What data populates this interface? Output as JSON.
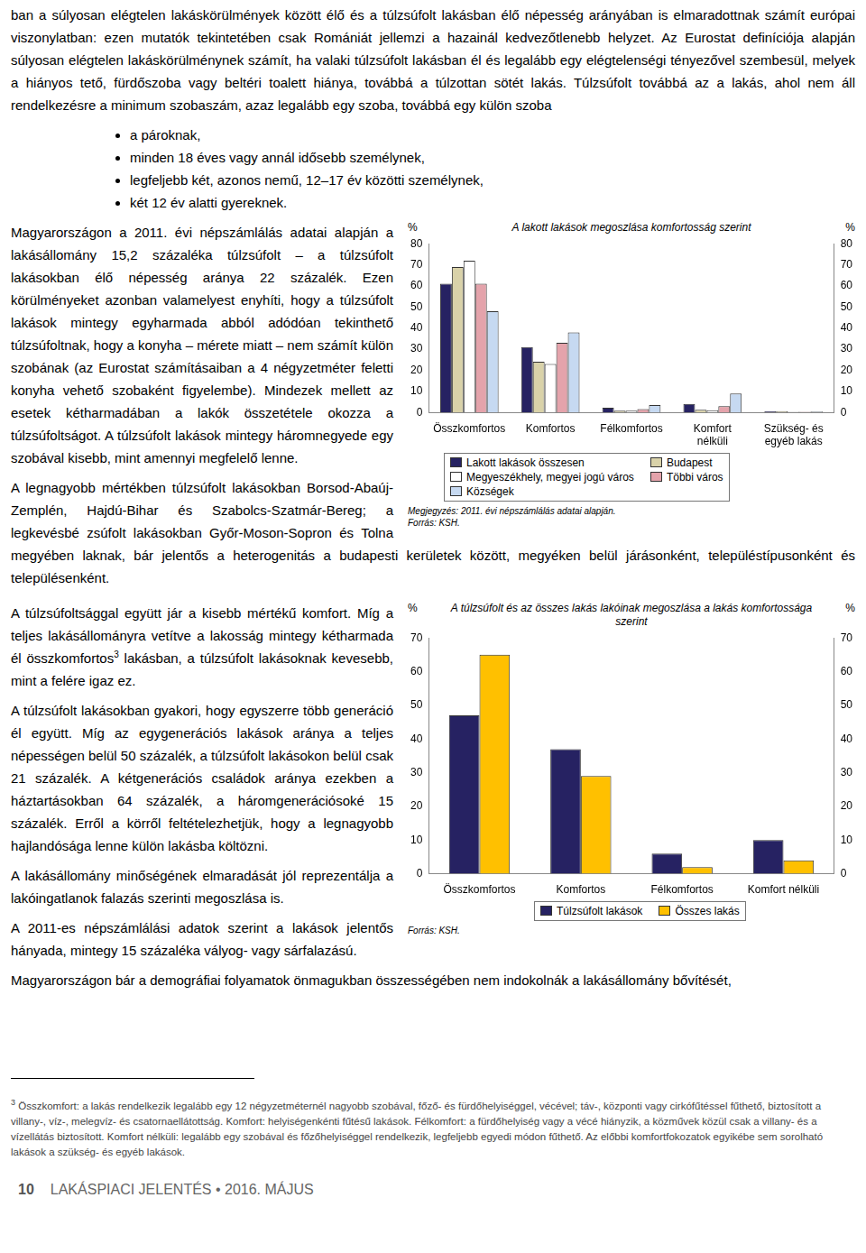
{
  "document": {
    "intro": "ban a súlyosan elégtelen lakáskörülmények között élő és a túlzsúfolt lakásban élő népesség arányában is elmaradottnak számít európai viszonylatban: ezen mutatók tekintetében csak Romániát jellemzi a hazainál kedvezőtlenebb helyzet. Az Eurostat definíciója alapján súlyosan elégtelen lakáskörülménynek számít, ha valaki túlzsúfolt lakásban él és legalább egy elégtelenségi tényezővel szembesül, melyek a hiányos tető, fürdőszoba vagy beltéri toalett hiánya, továbbá a túlzottan sötét lakás. Túlzsúfolt továbbá az a lakás, ahol nem áll rendelkezésre a minimum szobaszám, azaz legalább egy szoba, továbbá egy külön szoba",
    "bullets": [
      "a pároknak,",
      "minden 18 éves vagy annál idősebb személynek,",
      "legfeljebb két, azonos nemű, 12–17 év közötti személynek,",
      "két 12 év alatti gyereknek."
    ],
    "section1": [
      "Magyarországon a 2011. évi népszámlálás adatai alapján a lakásállomány 15,2 százaléka túlzsúfolt – a túlzsúfolt lakásokban élő népesség aránya 22 százalék. Ezen körülményeket azonban valamelyest enyhíti, hogy a túlzsúfolt lakások mintegy egyharmada abból adódóan tekinthető túlzsúfoltnak, hogy a konyha – mérete miatt – nem számít külön szobának (az Eurostat számításaiban a 4 négyzetméter feletti konyha vehető szobaként figyelembe). Mindezek mellett az esetek kétharmadában a lakók összetétele okozza a túlzsúfoltságot. A túlzsúfolt lakások mintegy háromnegyede egy szobával kisebb, mint amennyi megfelelő lenne.",
      "A legnagyobb mértékben túlzsúfolt lakásokban Borsod-Abaúj-Zemplén, Hajdú-Bihar és Szabolcs-Szatmár-Bereg; a legkevésbé zsúfolt lakásokban Győr-Moson-Sopron és Tolna megyében laknak, bár jelentős a heterogenitás a budapesti kerületek között, megyéken belül járásonként, településtípusonként és településenként."
    ],
    "section2_first": {
      "before": "A túlzsúfoltsággal együtt jár a kisebb mértékű komfort. Míg a teljes lakásállományra vetítve a lakosság mintegy kétharmada él összkomfortos",
      "mark": "3",
      "after": " lakásban, a túlzsúfolt lakásoknak kevesebb, mint a felére igaz ez."
    },
    "section2": [
      "A túlzsúfolt lakásokban gyakori, hogy egyszerre több generáció él együtt. Míg az egygenerációs lakások aránya a teljes népességen belül 50 százalék, a túlzsúfolt lakásokon belül csak 21 százalék. A kétgenerációs családok aránya ezekben a háztartásokban 64 százalék, a háromgenerációsoké 15 százalék. Erről a körről feltételezhetjük, hogy a legnagyobb hajlandósága lenne külön lakásba költözni.",
      "A lakásállomány minőségének elmaradását jól reprezentálja a lakóingatlanok falazás szerinti megoszlása is.",
      "A 2011-es népszámlálási adatok szerint a lakások jelentős hányada, mintegy 15 százaléka vályog- vagy sárfalazású.",
      "Magyarországon bár a demográfiai folyamatok önmagukban összességében nem indokolnák a lakásállomány bővítését,"
    ],
    "footnote": {
      "mark": "3",
      "text": "Összkomfort: a lakás rendelkezik legalább egy 12 négyzetméternél nagyobb szobával, főző- és fürdőhelyiséggel, vécével; táv-, központi vagy cirkófűtéssel fűthető, biztosított a villany-, víz-, melegvíz- és csatornaellátottság. Komfort: helyiségenkénti fűtésű lakások. Félkomfort: a fürdőhelyiség vagy a vécé hiányzik, a közművek közül csak a villany- és a vízellátás biztosított. Komfort nélküli: legalább egy szobával és főzőhelyiséggel rendelkezik, legfeljebb egyedi módon fűthető. Az előbbi komfortfokozatok egyikébe sem sorolható lakások a szükség- és egyéb lakások."
    },
    "footer": {
      "page": "10",
      "title": "LAKÁSPIACI JELENTÉS • 2016. MÁJUS"
    }
  },
  "chart_data": [
    {
      "type": "bar",
      "title": "A lakott lakások megoszlása komfortosság szerint",
      "y_label": "%",
      "y2_label": "%",
      "categories": [
        "Összkomfortos",
        "Komfortos",
        "Félkomfortos",
        [
          "Komfort",
          "nélküli"
        ],
        [
          "Szükség- és",
          "egyéb lakás"
        ]
      ],
      "series": [
        {
          "name": "Lakott lakások összesen",
          "color": "#262262",
          "values": [
            61,
            31,
            2.2,
            4,
            0.5
          ]
        },
        {
          "name": "Budapest",
          "color": "#d9d2a9",
          "values": [
            69,
            24,
            0.8,
            1.3,
            0.6
          ]
        },
        {
          "name": "Megyeszékhely, megyei jogú város",
          "color": "#ffffff",
          "values": [
            72,
            23,
            0.8,
            1,
            0.3
          ]
        },
        {
          "name": "Többi város",
          "color": "#e4a3ab",
          "values": [
            61,
            33,
            1.6,
            3,
            0.3
          ]
        },
        {
          "name": "Községek",
          "color": "#c6d9f1",
          "values": [
            48,
            38,
            3.5,
            9,
            0.4
          ]
        }
      ],
      "ylim": [
        0,
        80
      ],
      "yticks": [
        0,
        10,
        20,
        30,
        40,
        50,
        60,
        70,
        80
      ],
      "y2lim": [
        0,
        80
      ],
      "y2ticks": [
        0,
        10,
        20,
        30,
        40,
        50,
        60,
        70,
        80
      ],
      "grid": false,
      "legend": "bottom",
      "note": "Megjegyzés: 2011. évi népszámlálás adatai alapján.",
      "source": "Forrás: KSH."
    },
    {
      "type": "bar",
      "title": "A túlzsúfolt és az összes lakás lakóinak megoszlása a lakás komfortossága szerint",
      "y_label": "%",
      "y2_label": "%",
      "categories": [
        "Összkomfortos",
        "Komfortos",
        "Félkomfortos",
        "Komfort nélküli"
      ],
      "series": [
        {
          "name": "Túlzsúfolt lakások",
          "color": "#262262",
          "values": [
            47,
            37,
            6,
            10
          ]
        },
        {
          "name": "Összes lakás",
          "color": "#ffc000",
          "values": [
            65,
            29,
            2,
            4
          ]
        }
      ],
      "ylim": [
        0,
        70
      ],
      "yticks": [
        0,
        10,
        20,
        30,
        40,
        50,
        60,
        70
      ],
      "y2lim": [
        0,
        70
      ],
      "y2ticks": [
        0,
        10,
        20,
        30,
        40,
        50,
        60,
        70
      ],
      "grid": false,
      "legend": "bottom",
      "source": "Forrás: KSH."
    }
  ]
}
